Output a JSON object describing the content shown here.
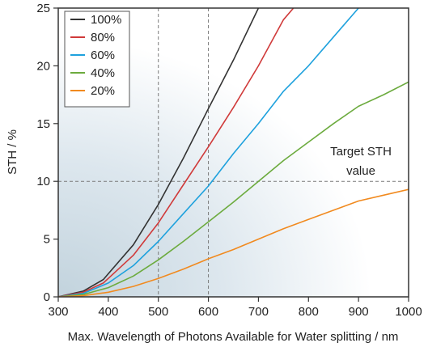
{
  "chart_data": {
    "type": "line",
    "xlabel": "Max. Wavelength of Photons Available for Water splitting / nm",
    "ylabel": "STH / %",
    "xlim": [
      300,
      1000
    ],
    "ylim": [
      0,
      25
    ],
    "xticks": [
      300,
      400,
      500,
      600,
      700,
      800,
      900,
      1000
    ],
    "yticks": [
      0,
      5,
      10,
      15,
      20,
      25
    ],
    "grid": false,
    "legend_position": "top-left",
    "reference_lines": {
      "x": [
        500,
        600
      ],
      "y": [
        10
      ]
    },
    "annotation": {
      "line1": "Target STH",
      "line2": "value"
    },
    "series": [
      {
        "name": "100%",
        "color": "#333333",
        "x": [
          300,
          350,
          390,
          400,
          450,
          500,
          550,
          600,
          650,
          700
        ],
        "y": [
          0,
          0.5,
          1.5,
          2.0,
          4.5,
          8.0,
          12.0,
          16.3,
          20.5,
          25.0
        ]
      },
      {
        "name": "80%",
        "color": "#d03a3a",
        "x": [
          300,
          350,
          390,
          400,
          450,
          500,
          550,
          600,
          650,
          700,
          750,
          770
        ],
        "y": [
          0,
          0.4,
          1.2,
          1.6,
          3.6,
          6.4,
          9.7,
          13.0,
          16.4,
          20.0,
          24.0,
          25.0
        ]
      },
      {
        "name": "60%",
        "color": "#1ea1dd",
        "x": [
          300,
          350,
          400,
          450,
          500,
          550,
          600,
          650,
          700,
          750,
          800,
          850,
          900
        ],
        "y": [
          0,
          0.3,
          1.2,
          2.7,
          4.8,
          7.2,
          9.6,
          12.4,
          15.0,
          17.8,
          20.0,
          22.5,
          25.0
        ]
      },
      {
        "name": "40%",
        "color": "#6cab3e",
        "x": [
          300,
          350,
          400,
          450,
          500,
          550,
          600,
          650,
          700,
          750,
          800,
          850,
          900,
          950,
          1000
        ],
        "y": [
          0,
          0.2,
          0.8,
          1.8,
          3.2,
          4.8,
          6.5,
          8.2,
          10.0,
          11.8,
          13.4,
          15.0,
          16.5,
          17.5,
          18.6
        ]
      },
      {
        "name": "20%",
        "color": "#f18a1f",
        "x": [
          300,
          350,
          400,
          450,
          500,
          550,
          600,
          650,
          700,
          750,
          800,
          850,
          900,
          950,
          1000
        ],
        "y": [
          0,
          0.1,
          0.4,
          0.9,
          1.6,
          2.4,
          3.3,
          4.1,
          5.0,
          5.9,
          6.7,
          7.5,
          8.3,
          8.8,
          9.3
        ]
      }
    ]
  }
}
